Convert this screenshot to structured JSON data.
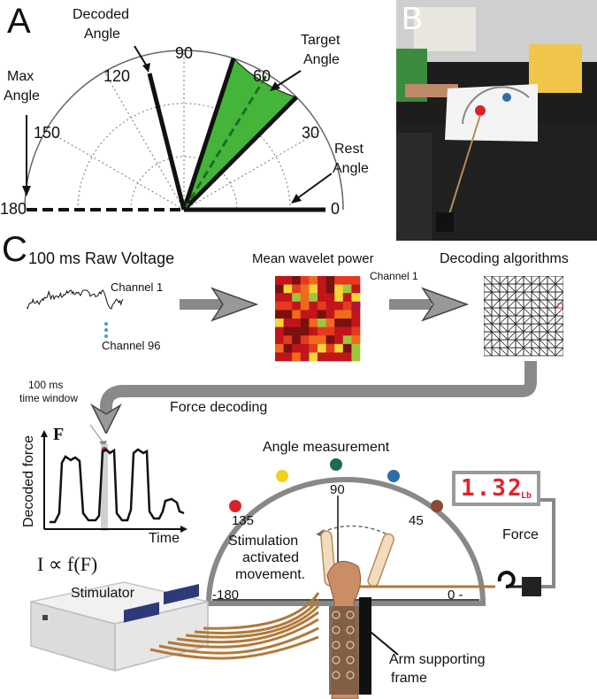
{
  "panels": {
    "a": "A",
    "b": "B",
    "c": "C"
  },
  "panel_a": {
    "decoded_angle": [
      "Decoded",
      "Angle"
    ],
    "target_angle": [
      "Target",
      "Angle"
    ],
    "max_angle": [
      "Max",
      "Angle"
    ],
    "rest_angle": [
      "Rest",
      "Angle"
    ],
    "ticks": [
      "0",
      "30",
      "60",
      "90",
      "120",
      "150",
      "180"
    ],
    "decoded_value_deg": 100,
    "target_range_deg": [
      45,
      72
    ],
    "target_center_deg": 58.5,
    "colors": {
      "target_fill": "#45b53a",
      "target_line": "#1e8a26",
      "outline": "#555555"
    }
  },
  "panel_c": {
    "raw_voltage_title": "100 ms Raw Voltage",
    "channel_1": "Channel 1",
    "channel_96": "Channel 96",
    "wavelet_title": "Mean wavelet power",
    "wavelet_channel": "Channel 1",
    "decoding_title": "Decoding algorithms",
    "time_window": [
      "100 ms",
      "time window"
    ],
    "force_decoding": "Force decoding",
    "f_axis": "F",
    "y_axis": "Decoded force",
    "x_axis": "Time",
    "angle_measurement": "Angle measurement",
    "angle_ticks": [
      "90",
      "135",
      "45",
      "-180",
      "0 -"
    ],
    "stimulation_text": [
      "Stimulation",
      "activated",
      "movement."
    ],
    "force_label": "Force",
    "display_value": "1.32",
    "display_unit": "Lb",
    "proportional": "I ∝ f(F)",
    "stimulator": "Stimulator",
    "arm_frame": [
      "Arm supporting",
      "frame"
    ],
    "dot_colors": [
      "#d9232a",
      "#f2d21b",
      "#1f6b4a",
      "#2e6ea6",
      "#8a4a36"
    ],
    "heatmap_colors": [
      "#c0151b",
      "#e53a1f",
      "#f06a1c",
      "#f5d533",
      "#9cc63b",
      "#7a1010"
    ]
  }
}
